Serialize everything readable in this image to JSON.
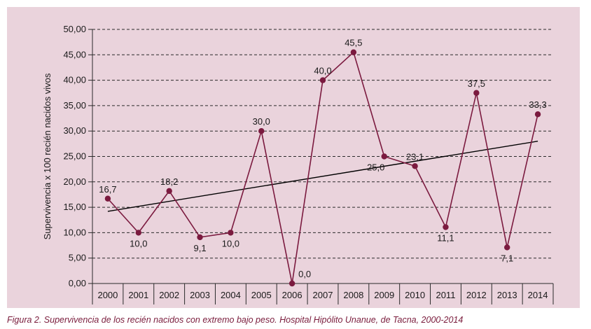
{
  "caption": "Figura 2. Supervivencia de los recién nacidos con extremo bajo peso. Hospital Hipólito Unanue, de Tacna, 2000-2014",
  "colors": {
    "panel_background": "#ead3dc",
    "series_line": "#7b1a3f",
    "marker": "#7b1a3f",
    "trend_line": "#000000",
    "caption_text": "#7a1c3c"
  },
  "chart_data": {
    "type": "line",
    "title": "",
    "xlabel": "",
    "ylabel": "Supervivencia x 100 recién nacidos vivos",
    "categories": [
      "2000",
      "2001",
      "2002",
      "2003",
      "2004",
      "2005",
      "2006",
      "2007",
      "2008",
      "2009",
      "2010",
      "2011",
      "2012",
      "2013",
      "2014"
    ],
    "series": [
      {
        "values": [
          16.7,
          10.0,
          18.2,
          9.1,
          10.0,
          30.0,
          0.0,
          40.0,
          45.5,
          25.0,
          23.1,
          11.1,
          37.5,
          7.1,
          33.3
        ],
        "data_labels": [
          "16,7",
          "10,0",
          "18,2",
          "9,1",
          "10,0",
          "30,0",
          "0,0",
          "40,0",
          "45,5",
          "25,0",
          "23,1",
          "11,1",
          "37,5",
          "7,1",
          "33,3"
        ]
      }
    ],
    "trendline": {
      "start": 14.2,
      "end": 28.0
    },
    "ylim": [
      0,
      50
    ],
    "yticks": [
      "0,00",
      "5,00",
      "10,00",
      "15,00",
      "20,00",
      "25,00",
      "30,00",
      "35,00",
      "40,00",
      "45,00",
      "50,00"
    ],
    "grid": "horizontal dashed",
    "legend": "none"
  }
}
